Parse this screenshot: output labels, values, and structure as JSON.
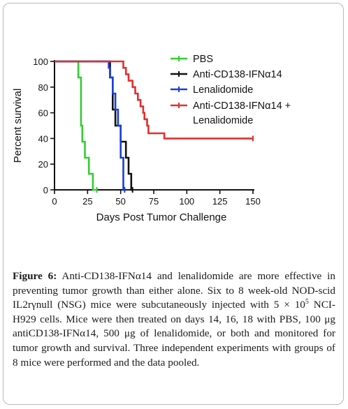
{
  "chart_data": {
    "type": "line",
    "step": true,
    "title": "",
    "xlabel": "Days Post Tumor Challenge",
    "ylabel": "Percent survival",
    "xlim": [
      0,
      150
    ],
    "ylim": [
      0,
      100
    ],
    "x_ticks": [
      "0",
      "25",
      "50",
      "75",
      "100",
      "125",
      "150"
    ],
    "y_ticks": [
      "0",
      "20",
      "40",
      "60",
      "80",
      "100"
    ],
    "grid": false,
    "legend_position": "top-right",
    "series": [
      {
        "name": "PBS",
        "color": "#33cc33",
        "points": [
          [
            0,
            100
          ],
          [
            18,
            100
          ],
          [
            18,
            87.5
          ],
          [
            20,
            87.5
          ],
          [
            20,
            50
          ],
          [
            21,
            50
          ],
          [
            21,
            37.5
          ],
          [
            23,
            37.5
          ],
          [
            23,
            25
          ],
          [
            26,
            25
          ],
          [
            26,
            12.5
          ],
          [
            29,
            12.5
          ],
          [
            29,
            0
          ],
          [
            32,
            0
          ]
        ]
      },
      {
        "name": "Anti-CD138-IFNα14",
        "color": "#111111",
        "points": [
          [
            0,
            100
          ],
          [
            42,
            100
          ],
          [
            42,
            87.5
          ],
          [
            44,
            87.5
          ],
          [
            44,
            62.5
          ],
          [
            46,
            62.5
          ],
          [
            46,
            50
          ],
          [
            50,
            50
          ],
          [
            50,
            37.5
          ],
          [
            54,
            37.5
          ],
          [
            54,
            25
          ],
          [
            56,
            25
          ],
          [
            56,
            12.5
          ],
          [
            58,
            12.5
          ],
          [
            58,
            0
          ],
          [
            59,
            0
          ]
        ]
      },
      {
        "name": "Lenalidomide",
        "color": "#1a3fd6",
        "points": [
          [
            0,
            100
          ],
          [
            41,
            100
          ],
          [
            41,
            95
          ],
          [
            42,
            95
          ],
          [
            42,
            87.5
          ],
          [
            44,
            87.5
          ],
          [
            44,
            75
          ],
          [
            46,
            75
          ],
          [
            46,
            62.5
          ],
          [
            48,
            62.5
          ],
          [
            48,
            50
          ],
          [
            50,
            50
          ],
          [
            50,
            25
          ],
          [
            52,
            25
          ],
          [
            52,
            0
          ],
          [
            53,
            0
          ]
        ]
      },
      {
        "name": "Anti-CD138-IFNα14 + Lenalidomide",
        "color": "#e03030",
        "points": [
          [
            0,
            100
          ],
          [
            52,
            100
          ],
          [
            52,
            95
          ],
          [
            54,
            95
          ],
          [
            54,
            90
          ],
          [
            56,
            90
          ],
          [
            56,
            85
          ],
          [
            59,
            85
          ],
          [
            59,
            80
          ],
          [
            61,
            80
          ],
          [
            61,
            75
          ],
          [
            63,
            75
          ],
          [
            63,
            70
          ],
          [
            65,
            70
          ],
          [
            65,
            65
          ],
          [
            67,
            65
          ],
          [
            67,
            60
          ],
          [
            68,
            60
          ],
          [
            68,
            55
          ],
          [
            70,
            55
          ],
          [
            70,
            50
          ],
          [
            71,
            50
          ],
          [
            71,
            44
          ],
          [
            83,
            44
          ],
          [
            83,
            40
          ],
          [
            150,
            40
          ]
        ]
      }
    ],
    "legend_labels": [
      "PBS",
      "Anti-CD138-IFNα14",
      "Lenalidomide",
      "Anti-CD138-IFNα14 +",
      "Lenalidomide"
    ]
  },
  "caption": {
    "label": "Figure 6:",
    "text_part1": " Anti-CD138-IFNα14 and lenalidomide are more effective in preventing tumor growth than either alone. Six to 8 week-old NOD-scid IL2rγnull (NSG) mice were subcutaneously injected with 5 × 10",
    "sup": "5",
    "text_part2": " NCI-H929 cells. Mice were then treated on days 14, 16, 18 with PBS, 100 μg antiCD138-IFNα14, 500 μg of lenalidomide, or both and monitored for tumor growth and survival. Three independent experiments with groups of 8 mice were performed and the data pooled."
  }
}
